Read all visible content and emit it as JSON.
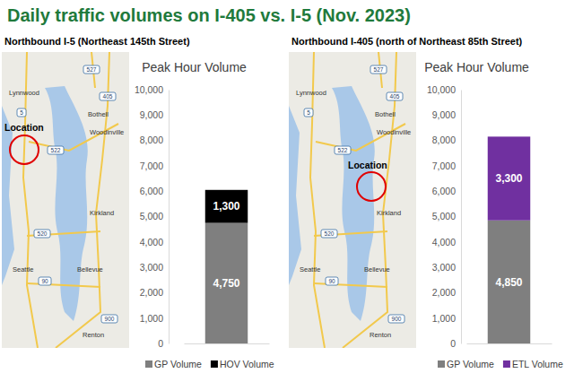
{
  "title": "Daily traffic volumes on I-405 vs. I-5 (Nov. 2023)",
  "panels": [
    {
      "heading": "Northbound I-5 (Northeast 145th Street)",
      "map": {
        "location_label": "Location",
        "labels": [
          "Lynnwood",
          "Bothell",
          "Woodinville",
          "Kirkland",
          "Seattle",
          "Bellevue",
          "Renton"
        ],
        "routes": [
          "527",
          "405",
          "5",
          "522",
          "520",
          "90",
          "900"
        ]
      }
    },
    {
      "heading": "Northbound I-405 (north of Northeast 85th Street)",
      "map": {
        "location_label": "Location",
        "labels": [
          "Lynnwood",
          "Bothell",
          "Woodinville",
          "Kirkland",
          "Seattle",
          "Bellevue",
          "Renton"
        ],
        "routes": [
          "527",
          "405",
          "5",
          "522",
          "520",
          "90",
          "900"
        ]
      }
    }
  ],
  "chart_data": [
    {
      "type": "bar",
      "title": "Peak Hour Volume",
      "categories": [
        null
      ],
      "series": [
        {
          "name": "GP Volume",
          "color": "#7f7f7f",
          "values": [
            4750
          ],
          "value_labels": [
            "4,750"
          ]
        },
        {
          "name": "HOV Volume",
          "color": "#000000",
          "values": [
            1300
          ],
          "value_labels": [
            "1,300"
          ]
        }
      ],
      "ylim": [
        0,
        10000
      ],
      "yticks": [
        0,
        {
          "value": 1000,
          "label": "1,000"
        },
        {
          "value": 2000,
          "label": "2,000"
        },
        {
          "value": 3000,
          "label": "3,000"
        },
        {
          "value": 4000,
          "label": "4,000"
        },
        {
          "value": 5000,
          "label": "5,000"
        },
        {
          "value": 6000,
          "label": "6,000"
        },
        {
          "value": 7000,
          "label": "7,000"
        },
        {
          "value": 8000,
          "label": "8,000"
        },
        {
          "value": 9000,
          "label": "9,000"
        },
        {
          "value": 10000,
          "label": "10,000"
        }
      ],
      "stacked": true,
      "data_labels": true,
      "grid": false,
      "legend": "bottom"
    },
    {
      "type": "bar",
      "title": "Peak Hour Volume",
      "categories": [
        null
      ],
      "series": [
        {
          "name": "GP Volume",
          "color": "#7f7f7f",
          "values": [
            4850
          ],
          "value_labels": [
            "4,850"
          ]
        },
        {
          "name": "ETL Volume",
          "color": "#7030a0",
          "values": [
            3300
          ],
          "value_labels": [
            "3,300"
          ]
        }
      ],
      "ylim": [
        0,
        10000
      ],
      "yticks": [
        0,
        {
          "value": 1000,
          "label": "1,000"
        },
        {
          "value": 2000,
          "label": "2,000"
        },
        {
          "value": 3000,
          "label": "3,000"
        },
        {
          "value": 4000,
          "label": "4,000"
        },
        {
          "value": 5000,
          "label": "5,000"
        },
        {
          "value": 6000,
          "label": "6,000"
        },
        {
          "value": 7000,
          "label": "7,000"
        },
        {
          "value": 8000,
          "label": "8,000"
        },
        {
          "value": 9000,
          "label": "9,000"
        },
        {
          "value": 10000,
          "label": "10,000"
        }
      ],
      "stacked": true,
      "data_labels": true,
      "grid": false,
      "legend": "bottom"
    }
  ]
}
